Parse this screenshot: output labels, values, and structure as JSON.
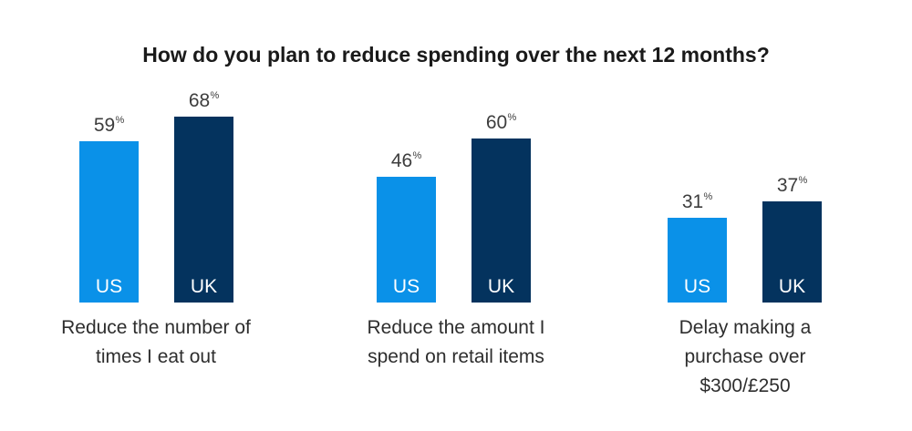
{
  "chart_data": {
    "type": "bar",
    "title": "How do you plan to reduce spending over the next 12 months?",
    "categories": [
      [
        "Reduce the number of",
        "times I eat out"
      ],
      [
        "Reduce the amount I",
        "spend on retail items"
      ],
      [
        "Delay making a",
        "purchase over",
        "$300/£250"
      ]
    ],
    "series": [
      {
        "name": "US",
        "values": [
          59,
          46,
          31
        ],
        "color": "#0a91e8"
      },
      {
        "name": "UK",
        "values": [
          68,
          60,
          37
        ],
        "color": "#04335e"
      }
    ],
    "value_suffix": "%",
    "ylim": [
      0,
      100
    ],
    "grid": false,
    "legend": "none"
  }
}
